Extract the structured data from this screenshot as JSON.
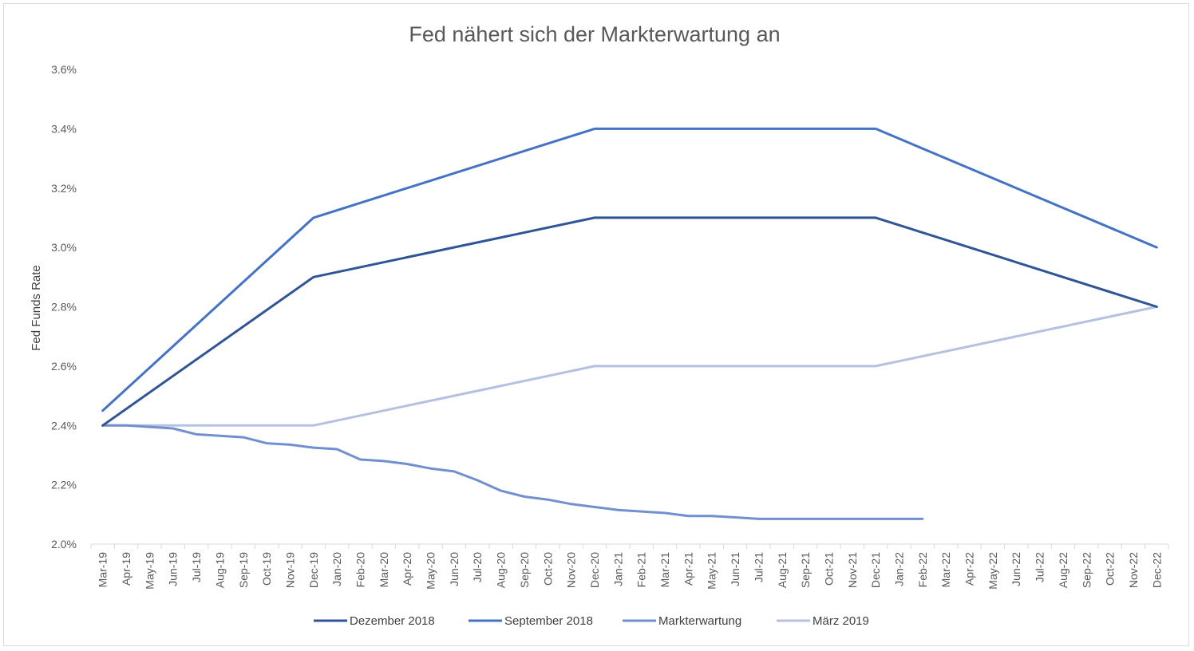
{
  "chart_data": {
    "type": "line",
    "title": "Fed nähert sich der Markterwartung an",
    "ylabel": "Fed Funds Rate",
    "xlabel": "",
    "ylim": [
      0.02,
      0.036
    ],
    "yticks": [
      "2.0%",
      "2.2%",
      "2.4%",
      "2.6%",
      "2.8%",
      "3.0%",
      "3.2%",
      "3.4%",
      "3.6%"
    ],
    "ytick_values": [
      0.02,
      0.022,
      0.024,
      0.026,
      0.028,
      0.03,
      0.032,
      0.034,
      0.036
    ],
    "grid": false,
    "legend_position": "bottom",
    "categories": [
      "Mar-19",
      "Apr-19",
      "May-19",
      "Jun-19",
      "Jul-19",
      "Aug-19",
      "Sep-19",
      "Oct-19",
      "Nov-19",
      "Dec-19",
      "Jan-20",
      "Feb-20",
      "Mar-20",
      "Apr-20",
      "May-20",
      "Jun-20",
      "Jul-20",
      "Aug-20",
      "Sep-20",
      "Oct-20",
      "Nov-20",
      "Dec-20",
      "Jan-21",
      "Feb-21",
      "Mar-21",
      "Apr-21",
      "May-21",
      "Jun-21",
      "Jul-21",
      "Aug-21",
      "Sep-21",
      "Oct-21",
      "Nov-21",
      "Dec-21",
      "Jan-22",
      "Feb-22",
      "Mar-22",
      "Apr-22",
      "May-22",
      "Jun-22",
      "Jul-22",
      "Aug-22",
      "Sep-22",
      "Oct-22",
      "Nov-22",
      "Dec-22"
    ],
    "series": [
      {
        "name": "Dezember 2018",
        "color": "#2f5597",
        "points": [
          [
            0,
            0.024
          ],
          [
            9,
            0.029
          ],
          [
            21,
            0.031
          ],
          [
            33,
            0.031
          ],
          [
            45,
            0.028
          ]
        ]
      },
      {
        "name": "September 2018",
        "color": "#4472c4",
        "points": [
          [
            0,
            0.0245
          ],
          [
            9,
            0.031
          ],
          [
            21,
            0.034
          ],
          [
            33,
            0.034
          ],
          [
            45,
            0.03
          ]
        ]
      },
      {
        "name": "Markterwartung",
        "color": "#7290cf",
        "points": [
          [
            0,
            0.024
          ],
          [
            1,
            0.024
          ],
          [
            2,
            0.02395
          ],
          [
            3,
            0.0239
          ],
          [
            4,
            0.0237
          ],
          [
            5,
            0.02365
          ],
          [
            6,
            0.0236
          ],
          [
            7,
            0.0234
          ],
          [
            8,
            0.02335
          ],
          [
            9,
            0.02325
          ],
          [
            10,
            0.0232
          ],
          [
            11,
            0.02285
          ],
          [
            12,
            0.0228
          ],
          [
            13,
            0.0227
          ],
          [
            14,
            0.02255
          ],
          [
            15,
            0.02245
          ],
          [
            16,
            0.02215
          ],
          [
            17,
            0.0218
          ],
          [
            18,
            0.0216
          ],
          [
            19,
            0.0215
          ],
          [
            20,
            0.02135
          ],
          [
            21,
            0.02125
          ],
          [
            22,
            0.02115
          ],
          [
            23,
            0.0211
          ],
          [
            24,
            0.02105
          ],
          [
            25,
            0.02095
          ],
          [
            26,
            0.02095
          ],
          [
            27,
            0.0209
          ],
          [
            28,
            0.02085
          ],
          [
            29,
            0.02085
          ],
          [
            30,
            0.02085
          ],
          [
            31,
            0.02085
          ],
          [
            32,
            0.02085
          ],
          [
            33,
            0.02085
          ],
          [
            34,
            0.02085
          ],
          [
            35,
            0.02085
          ]
        ]
      },
      {
        "name": "März 2019",
        "color": "#b4c1e0",
        "points": [
          [
            0,
            0.024
          ],
          [
            9,
            0.024
          ],
          [
            21,
            0.026
          ],
          [
            33,
            0.026
          ],
          [
            45,
            0.028
          ]
        ]
      }
    ]
  }
}
